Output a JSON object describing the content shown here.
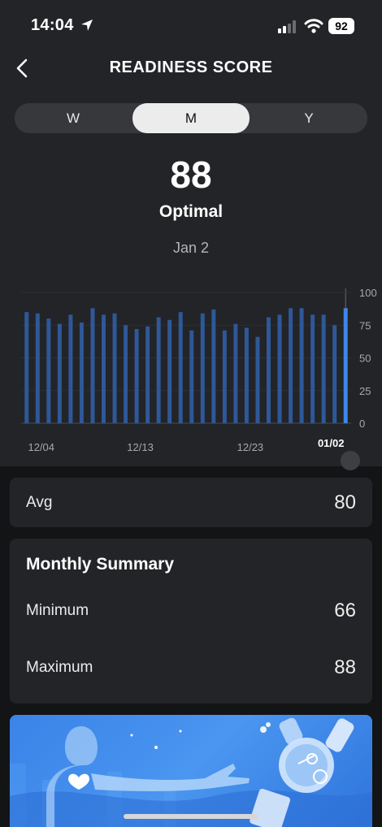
{
  "status_bar": {
    "time": "14:04",
    "battery": "92",
    "location_icon": "location-arrow-icon",
    "signal_icon": "cellular-signal-icon",
    "wifi_icon": "wifi-icon"
  },
  "header": {
    "title": "READINESS SCORE",
    "back_icon": "chevron-left-icon"
  },
  "segments": [
    {
      "label": "W",
      "active": false
    },
    {
      "label": "M",
      "active": true
    },
    {
      "label": "Y",
      "active": false
    }
  ],
  "score": {
    "value": "88",
    "status": "Optimal",
    "date": "Jan 2"
  },
  "chart_data": {
    "type": "bar",
    "ylim": [
      0,
      100
    ],
    "y_ticks": [
      "100",
      "75",
      "50",
      "25",
      "0"
    ],
    "x_tick_labels": [
      "12/04",
      "12/13",
      "12/23",
      "01/02"
    ],
    "values": [
      85,
      84,
      80,
      76,
      83,
      77,
      88,
      83,
      84,
      75,
      72,
      74,
      81,
      79,
      85,
      71,
      84,
      87,
      71,
      76,
      73,
      66,
      81,
      83,
      88,
      88,
      83,
      83,
      75,
      88
    ],
    "selected_index": 29,
    "colors": {
      "bar": "#2e5898",
      "selected": "#3d86ea"
    }
  },
  "avg": {
    "label": "Avg",
    "value": "80"
  },
  "summary": {
    "title": "Monthly Summary",
    "rows": [
      {
        "label": "Minimum",
        "value": "66"
      },
      {
        "label": "Maximum",
        "value": "88"
      }
    ]
  }
}
